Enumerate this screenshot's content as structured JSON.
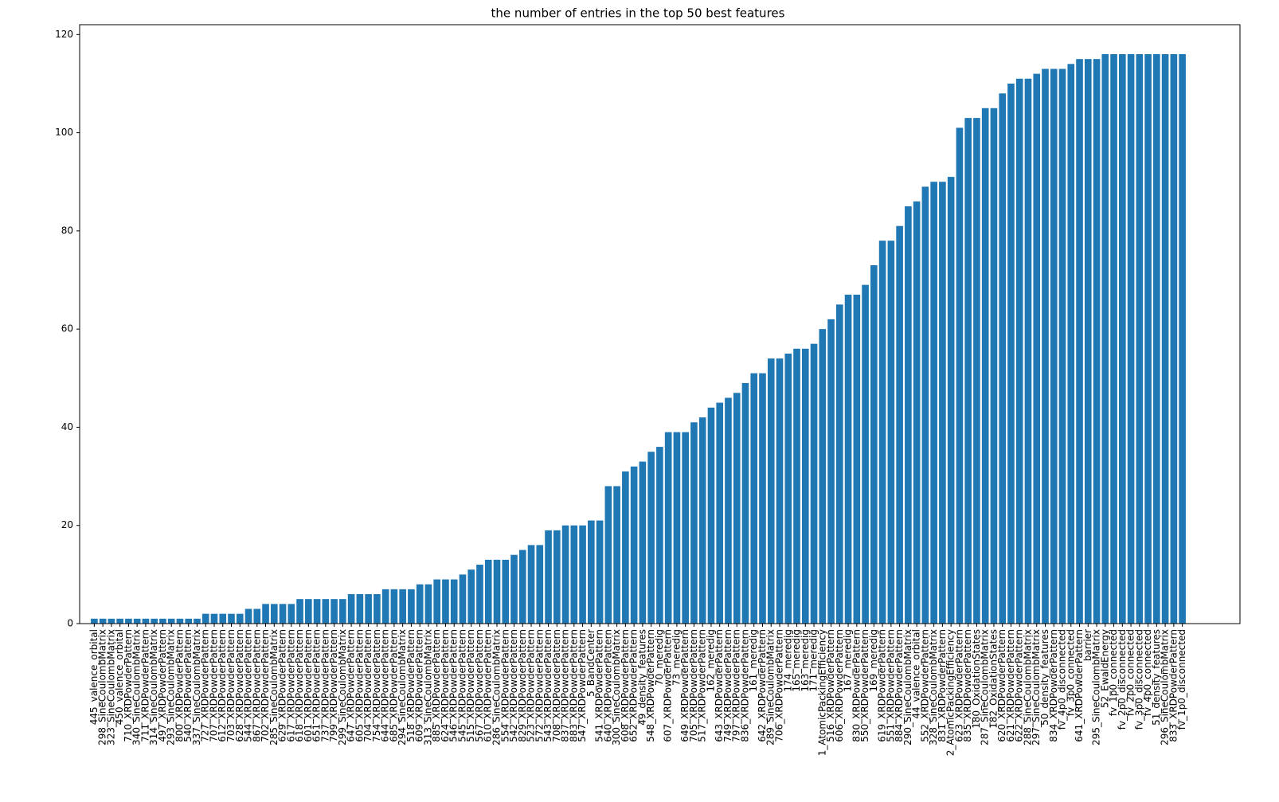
{
  "chart_data": {
    "type": "bar",
    "title": "the number of entries in the top 50 best features",
    "categories": [
      "445_valence_orbital",
      "298_SineCoulombMatrix",
      "323_SineCoulombMatrix",
      "450_valence_orbital",
      "710_XRDPowderPattern",
      "340_SineCoulombMatrix",
      "711_XRDPowderPattern",
      "314_SineCoulombMatrix",
      "497_XRDPowderPattern",
      "293_SineCoulombMatrix",
      "800_XRDPowderPattern",
      "540_XRDPowderPattern",
      "337_SineCoulombMatrix",
      "727_XRDPowderPattern",
      "707_XRDPowderPattern",
      "612_XRDPowderPattern",
      "703_XRDPowderPattern",
      "628_XRDPowderPattern",
      "544_XRDPowderPattern",
      "867_XRDPowderPattern",
      "702_XRDPowderPattern",
      "285_SineCoulombMatrix",
      "629_XRDPowderPattern",
      "617_XRDPowderPattern",
      "618_XRDPowderPattern",
      "601_XRDPowderPattern",
      "651_XRDPowderPattern",
      "737_XRDPowderPattern",
      "799_XRDPowderPattern",
      "299_SineCoulombMatrix",
      "647_XRDPowderPattern",
      "605_XRDPowderPattern",
      "704_XRDPowderPattern",
      "754_XRDPowderPattern",
      "644_XRDPowderPattern",
      "685_XRDPowderPattern",
      "294_SineCoulombMatrix",
      "518_XRDPowderPattern",
      "609_XRDPowderPattern",
      "313_SineCoulombMatrix",
      "885_XRDPowderPattern",
      "624_XRDPowderPattern",
      "546_XRDPowderPattern",
      "545_XRDPowderPattern",
      "515_XRDPowderPattern",
      "567_XRDPowderPattern",
      "610_XRDPowderPattern",
      "286_SineCoulombMatrix",
      "554_XRDPowderPattern",
      "542_XRDPowderPattern",
      "829_XRDPowderPattern",
      "523_XRDPowderPattern",
      "572_XRDPowderPattern",
      "543_XRDPowderPattern",
      "708_XRDPowderPattern",
      "837_XRDPowderPattern",
      "883_XRDPowderPattern",
      "547_XRDPowderPattern",
      "5_BandCenter",
      "541_XRDPowderPattern",
      "640_XRDPowderPattern",
      "300_SineCoulombMatrix",
      "608_XRDPowderPattern",
      "652_XRDPowderPattern",
      "49_density_features",
      "548_XRDPowderPattern",
      "70_meredig",
      "607_XRDPowderPattern",
      "73_meredig",
      "649_XRDPowderPattern",
      "705_XRDPowderPattern",
      "517_XRDPowderPattern",
      "162_meredig",
      "643_XRDPowderPattern",
      "749_XRDPowderPattern",
      "797_XRDPowderPattern",
      "836_XRDPowderPattern",
      "161_meredig",
      "642_XRDPowderPattern",
      "289_SineCoulombMatrix",
      "706_XRDPowderPattern",
      "174_meredig",
      "165_meredig",
      "163_meredig",
      "171_meredig",
      "1_AtomicPackingEfficiency",
      "516_XRDPowderPattern",
      "606_XRDPowderPattern",
      "167_meredig",
      "830_XRDPowderPattern",
      "550_XRDPowderPattern",
      "169_meredig",
      "619_XRDPowderPattern",
      "551_XRDPowderPattern",
      "884_XRDPowderPattern",
      "290_SineCoulombMatrix",
      "44_valence_orbital",
      "552_XRDPowderPattern",
      "328_SineCoulombMatrix",
      "831_XRDPowderPattern",
      "2_AtomicPackingEfficiency",
      "623_XRDPowderPattern",
      "835_XRDPowderPattern",
      "180_OxidationStates",
      "287_SineCoulombMatrix",
      "182_OxidationStates",
      "620_XRDPowderPattern",
      "621_XRDPowderPattern",
      "622_XRDPowderPattern",
      "288_SineCoulombMatrix",
      "297_SineCoulombMatrix",
      "50_density_features",
      "834_XRDPowderPattern",
      "fv_4p0_disconnected",
      "fv_3p0_connected",
      "641_XRDPowderPattern",
      "barrier",
      "295_SineCoulombMatrix",
      "52_EwaldEnergy",
      "fv_1p0_connected",
      "fv_2p0_disconnected",
      "fv_2p0_connected",
      "fv_3p0_disconnected",
      "fv_4p0_connected",
      "51_density_features",
      "296_SineCoulombMatrix",
      "833_XRDPowderPattern",
      "fv_1p0_disconnected"
    ],
    "values": [
      1,
      1,
      1,
      1,
      1,
      1,
      1,
      1,
      1,
      1,
      1,
      1,
      1,
      2,
      2,
      2,
      2,
      2,
      3,
      3,
      4,
      4,
      4,
      4,
      5,
      5,
      5,
      5,
      5,
      5,
      6,
      6,
      6,
      6,
      7,
      7,
      7,
      7,
      8,
      8,
      9,
      9,
      9,
      10,
      11,
      12,
      13,
      13,
      13,
      14,
      15,
      16,
      16,
      19,
      19,
      20,
      20,
      20,
      21,
      21,
      28,
      28,
      31,
      32,
      33,
      35,
      36,
      39,
      39,
      39,
      41,
      42,
      44,
      45,
      46,
      47,
      49,
      51,
      51,
      54,
      54,
      55,
      56,
      56,
      57,
      60,
      62,
      65,
      67,
      67,
      69,
      73,
      78,
      78,
      81,
      85,
      86,
      89,
      90,
      90,
      91,
      101,
      103,
      103,
      105,
      105,
      108,
      110,
      111,
      111,
      112,
      113,
      113,
      113,
      114,
      115,
      115,
      115,
      116,
      116,
      116,
      116,
      116,
      116,
      116,
      116,
      116,
      116
    ],
    "color": "#1f77b4",
    "ylim": [
      0,
      122
    ],
    "yticks": [
      0,
      20,
      40,
      60,
      80,
      100,
      120
    ]
  }
}
